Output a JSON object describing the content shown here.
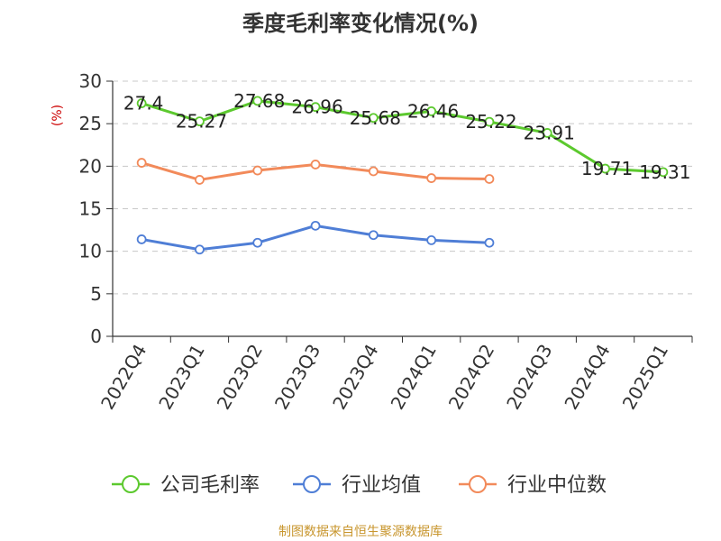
{
  "chart_data": {
    "type": "line",
    "title": "季度毛利率变化情况(%)",
    "ylabel": "(%)",
    "xlabel": "",
    "ylim": [
      0,
      30
    ],
    "yticks": [
      0,
      5,
      10,
      15,
      20,
      25,
      30
    ],
    "categories": [
      "2022Q4",
      "2023Q1",
      "2023Q2",
      "2023Q3",
      "2023Q4",
      "2024Q1",
      "2024Q2",
      "2024Q3",
      "2024Q4",
      "2025Q1"
    ],
    "grid": true,
    "legend_position": "bottom",
    "series": [
      {
        "name": "公司毛利率",
        "color": "#5cc92e",
        "values": [
          27.4,
          25.27,
          27.68,
          26.96,
          25.68,
          26.46,
          25.22,
          23.91,
          19.71,
          19.31
        ],
        "labels": [
          "27.4",
          "25.27",
          "27.68",
          "26.96",
          "25.68",
          "26.46",
          "25.22",
          "23.91",
          "19.71",
          "19.31"
        ]
      },
      {
        "name": "行业均值",
        "color": "#4f7ed6",
        "values": [
          11.4,
          10.2,
          11.0,
          13.0,
          11.9,
          11.3,
          11.0,
          null,
          null,
          null
        ]
      },
      {
        "name": "行业中位数",
        "color": "#f28a5a",
        "values": [
          20.4,
          18.4,
          19.5,
          20.2,
          19.4,
          18.6,
          18.5,
          null,
          null,
          null
        ]
      }
    ],
    "source": "制图数据来自恒生聚源数据库"
  }
}
